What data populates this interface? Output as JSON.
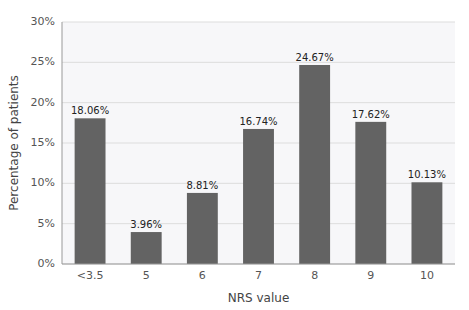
{
  "chart_data": {
    "type": "bar",
    "categories": [
      "<3.5",
      "5",
      "6",
      "7",
      "8",
      "9",
      "10"
    ],
    "values": [
      18.06,
      3.96,
      8.81,
      16.74,
      24.67,
      17.62,
      10.13
    ],
    "value_labels": [
      "18.06%",
      "3.96%",
      "8.81%",
      "16.74%",
      "24.67%",
      "17.62%",
      "10.13%"
    ],
    "color": "#636363",
    "xlabel": "NRS value",
    "ylabel": "Percentage of patients",
    "ylim": [
      0,
      30
    ],
    "yticks": [
      {
        "value": 0,
        "label": "0%"
      },
      {
        "value": 5,
        "label": "5%"
      },
      {
        "value": 10,
        "label": "10%"
      },
      {
        "value": 15,
        "label": "15%"
      },
      {
        "value": 20,
        "label": "20%"
      },
      {
        "value": 25,
        "label": "25%"
      },
      {
        "value": 30,
        "label": "30%"
      }
    ],
    "grid": true,
    "data_labels": true
  }
}
